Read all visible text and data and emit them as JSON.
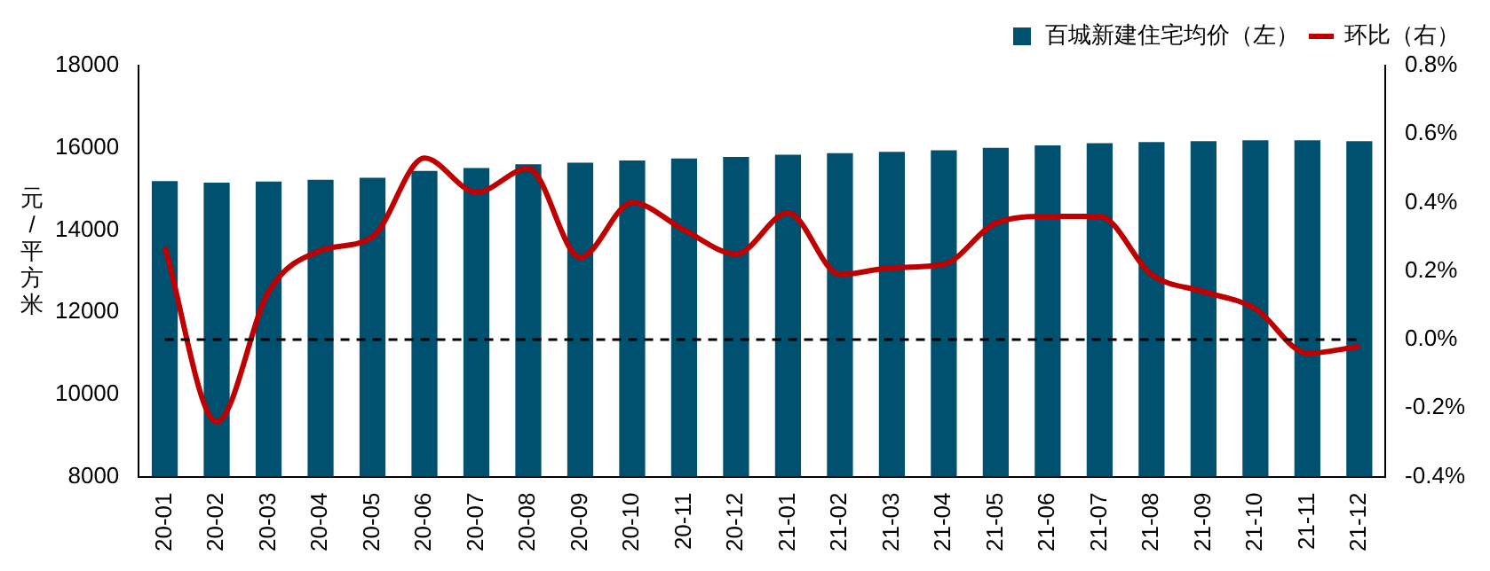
{
  "chart_data": {
    "type": "bar",
    "categories": [
      "20-01",
      "20-02",
      "20-03",
      "20-04",
      "20-05",
      "20-06",
      "20-07",
      "20-08",
      "20-09",
      "20-10",
      "20-11",
      "20-12",
      "21-01",
      "21-02",
      "21-03",
      "21-04",
      "21-05",
      "21-06",
      "21-07",
      "21-08",
      "21-09",
      "21-10",
      "21-11",
      "21-12"
    ],
    "series": [
      {
        "name": "百城新建住宅均价（左）",
        "color": "#00506f",
        "values": [
          15190,
          15150,
          15180,
          15220,
          15270,
          15440,
          15510,
          15600,
          15640,
          15690,
          15740,
          15780,
          15830,
          15870,
          15900,
          15940,
          16000,
          16060,
          16110,
          16140,
          16160,
          16180,
          16180,
          16160
        ]
      },
      {
        "name": "环比（右）",
        "type": "line",
        "axis": "y2",
        "color": "#c00000",
        "values": [
          0.27,
          -0.24,
          0.14,
          0.26,
          0.3,
          0.53,
          0.43,
          0.5,
          0.24,
          0.4,
          0.32,
          0.25,
          0.37,
          0.19,
          0.21,
          0.22,
          0.34,
          0.36,
          0.36,
          0.19,
          0.14,
          0.09,
          -0.04,
          -0.02
        ]
      }
    ],
    "ylabel": "元/平方米",
    "ylim": [
      8000,
      18000
    ],
    "yticks": [
      8000,
      10000,
      12000,
      14000,
      16000,
      18000
    ],
    "y2lim": [
      -0.4,
      0.8
    ],
    "y2ticks": [
      {
        "value": -0.4,
        "label": "-0.4%"
      },
      {
        "value": -0.2,
        "label": "-0.2%"
      },
      {
        "value": 0,
        "label": "0.0%"
      },
      {
        "value": 0.2,
        "label": "0.2%"
      },
      {
        "value": 0.4,
        "label": "0.4%"
      },
      {
        "value": 0.6,
        "label": "0.6%"
      },
      {
        "value": 0.8,
        "label": "0.8%"
      }
    ],
    "ref_lines": [
      {
        "axis": "y2",
        "value": 0,
        "color": "#000000",
        "line_style": "dashed"
      }
    ],
    "grid": false,
    "legend": "top",
    "marker": "none"
  }
}
